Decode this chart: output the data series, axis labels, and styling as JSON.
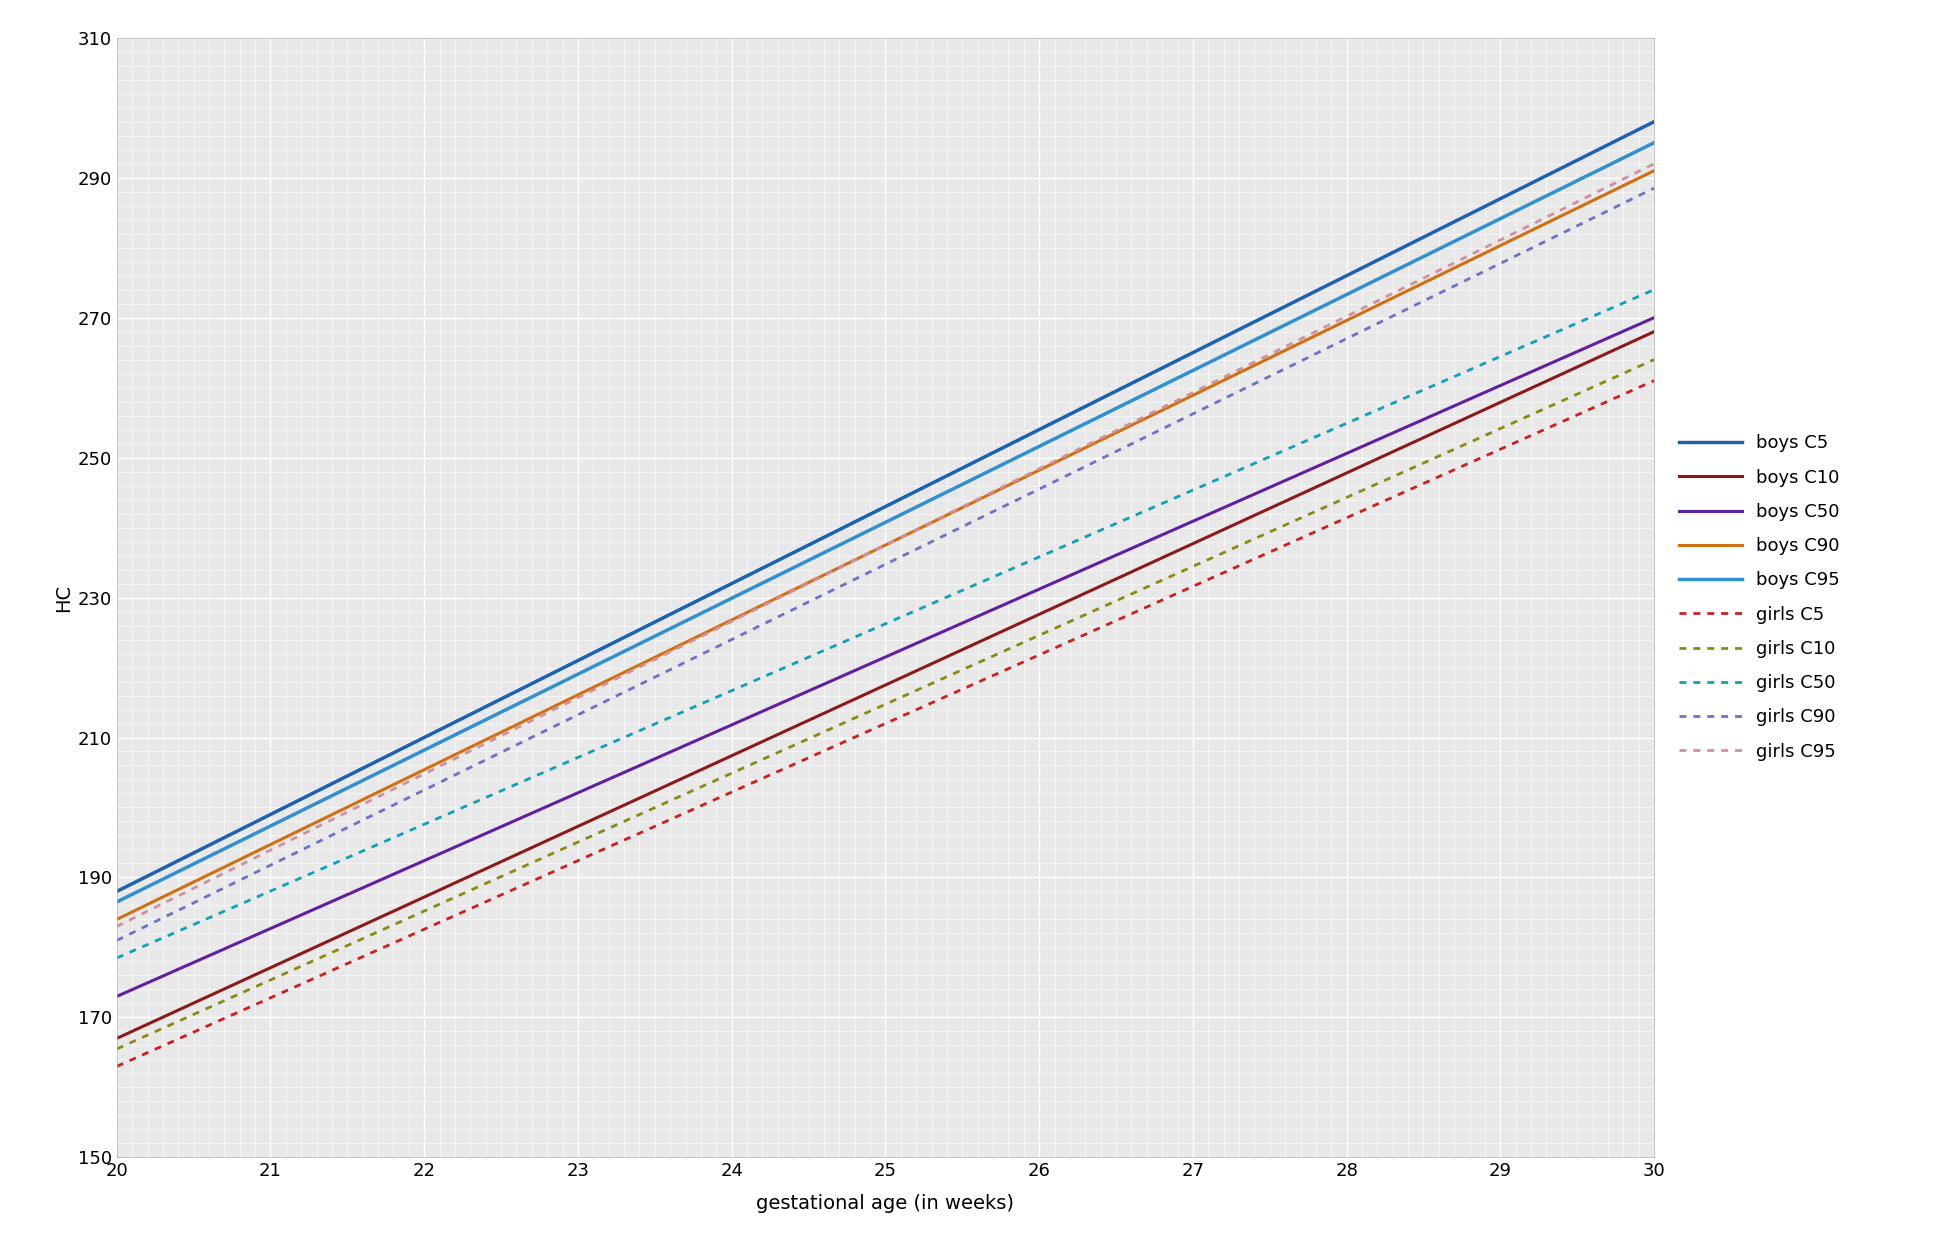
{
  "xlabel": "gestational age (in weeks)",
  "ylabel": "HC",
  "xlim": [
    20,
    30
  ],
  "ylim": [
    150,
    310
  ],
  "xticks": [
    20,
    21,
    22,
    23,
    24,
    25,
    26,
    27,
    28,
    29,
    30
  ],
  "yticks": [
    150,
    170,
    190,
    210,
    230,
    250,
    270,
    290,
    310
  ],
  "background_color": "#e8e8e8",
  "boys": {
    "C5": {
      "color": "#2060b0",
      "y20": 188.0,
      "y30": 298.0,
      "lw": 2.5
    },
    "C10": {
      "color": "#8b1a1a",
      "y20": 167.0,
      "y30": 268.0,
      "lw": 2.2
    },
    "C50": {
      "color": "#6020a0",
      "y20": 173.0,
      "y30": 270.0,
      "lw": 2.2
    },
    "C90": {
      "color": "#d07010",
      "y20": 184.0,
      "y30": 291.0,
      "lw": 2.2
    },
    "C95": {
      "color": "#3090d0",
      "y20": 186.5,
      "y30": 295.0,
      "lw": 2.5
    }
  },
  "girls": {
    "C5": {
      "color": "#cc2020",
      "y20": 163.0,
      "y30": 261.0,
      "lw": 2.0
    },
    "C10": {
      "color": "#8a8a10",
      "y20": 165.5,
      "y30": 264.0,
      "lw": 2.0
    },
    "C50": {
      "color": "#10a0b8",
      "y20": 178.5,
      "y30": 274.0,
      "lw": 2.0
    },
    "C90": {
      "color": "#7070c8",
      "y20": 181.0,
      "y30": 288.5,
      "lw": 2.0
    },
    "C95": {
      "color": "#d090a0",
      "y20": 183.0,
      "y30": 292.0,
      "lw": 2.0
    }
  },
  "legend_order": [
    "boys_C5",
    "boys_C10",
    "boys_C50",
    "boys_C90",
    "boys_C95",
    "girls_C5",
    "girls_C10",
    "girls_C50",
    "girls_C90",
    "girls_C95"
  ],
  "legend_labels": {
    "boys_C5": "boys C5",
    "boys_C10": "boys C10",
    "boys_C50": "boys C50",
    "boys_C90": "boys C90",
    "boys_C95": "boys C95",
    "girls_C5": "girls C5",
    "girls_C10": "girls C10",
    "girls_C50": "girls C50",
    "girls_C90": "girls C90",
    "girls_C95": "girls C95"
  }
}
